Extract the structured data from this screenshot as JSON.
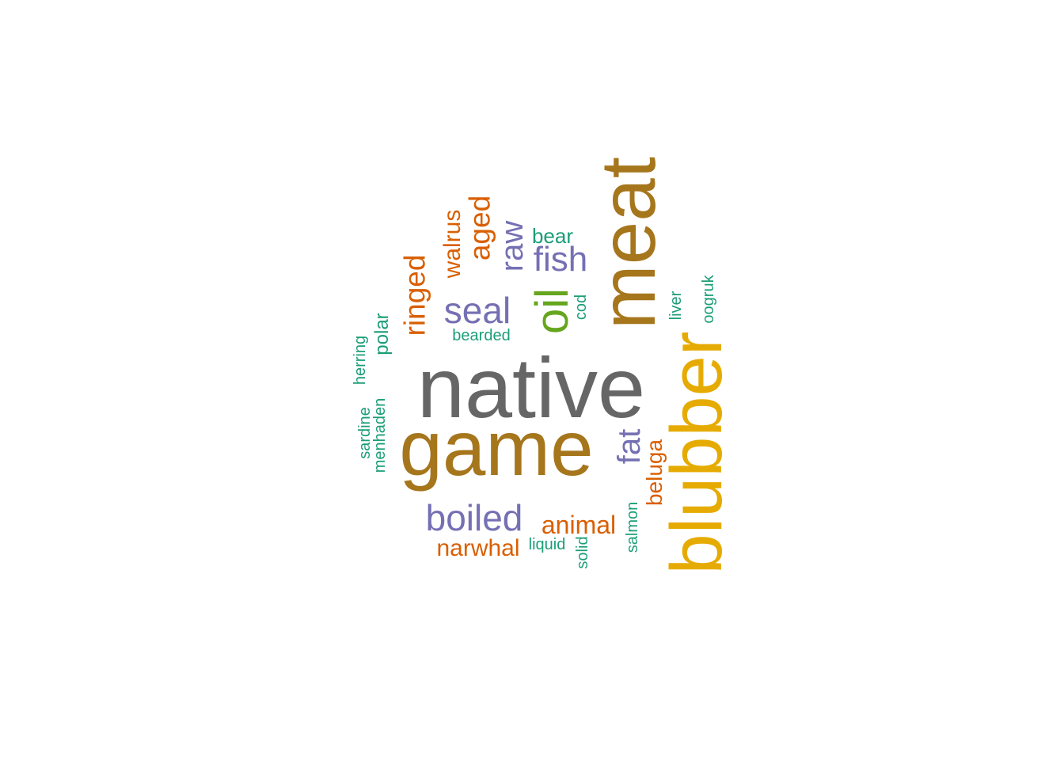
{
  "palette": {
    "gray": "#666666",
    "brown": "#A6761D",
    "gold": "#E6AB02",
    "purple": "#7570B3",
    "orange": "#D95F02",
    "green": "#66A61E",
    "teal": "#1B9E77"
  },
  "words": [
    {
      "text": "native",
      "weight": 10,
      "color": "#666666",
      "orientation": "horizontal"
    },
    {
      "text": "game",
      "weight": 9,
      "color": "#A6761D",
      "orientation": "horizontal"
    },
    {
      "text": "meat",
      "weight": 9,
      "color": "#A6761D",
      "orientation": "vertical"
    },
    {
      "text": "blubber",
      "weight": 8,
      "color": "#E6AB02",
      "orientation": "vertical"
    },
    {
      "text": "oil",
      "weight": 6,
      "color": "#66A61E",
      "orientation": "vertical"
    },
    {
      "text": "seal",
      "weight": 5,
      "color": "#7570B3",
      "orientation": "horizontal"
    },
    {
      "text": "boiled",
      "weight": 5,
      "color": "#7570B3",
      "orientation": "horizontal"
    },
    {
      "text": "fish",
      "weight": 5,
      "color": "#7570B3",
      "orientation": "horizontal"
    },
    {
      "text": "raw",
      "weight": 5,
      "color": "#7570B3",
      "orientation": "vertical"
    },
    {
      "text": "fat",
      "weight": 5,
      "color": "#7570B3",
      "orientation": "vertical"
    },
    {
      "text": "ringed",
      "weight": 4,
      "color": "#D95F02",
      "orientation": "vertical"
    },
    {
      "text": "aged",
      "weight": 4,
      "color": "#D95F02",
      "orientation": "vertical"
    },
    {
      "text": "walrus",
      "weight": 4,
      "color": "#D95F02",
      "orientation": "vertical"
    },
    {
      "text": "animal",
      "weight": 4,
      "color": "#D95F02",
      "orientation": "horizontal"
    },
    {
      "text": "narwhal",
      "weight": 4,
      "color": "#D95F02",
      "orientation": "horizontal"
    },
    {
      "text": "beluga",
      "weight": 4,
      "color": "#D95F02",
      "orientation": "vertical"
    },
    {
      "text": "bear",
      "weight": 3,
      "color": "#1B9E77",
      "orientation": "horizontal"
    },
    {
      "text": "polar",
      "weight": 3,
      "color": "#1B9E77",
      "orientation": "vertical"
    },
    {
      "text": "bearded",
      "weight": 2,
      "color": "#1B9E77",
      "orientation": "horizontal"
    },
    {
      "text": "herring",
      "weight": 2,
      "color": "#1B9E77",
      "orientation": "vertical"
    },
    {
      "text": "sardine",
      "weight": 2,
      "color": "#1B9E77",
      "orientation": "vertical"
    },
    {
      "text": "menhaden",
      "weight": 2,
      "color": "#1B9E77",
      "orientation": "vertical"
    },
    {
      "text": "cod",
      "weight": 2,
      "color": "#1B9E77",
      "orientation": "vertical"
    },
    {
      "text": "liver",
      "weight": 2,
      "color": "#1B9E77",
      "orientation": "vertical"
    },
    {
      "text": "oogruk",
      "weight": 2,
      "color": "#1B9E77",
      "orientation": "vertical"
    },
    {
      "text": "liquid",
      "weight": 2,
      "color": "#1B9E77",
      "orientation": "horizontal"
    },
    {
      "text": "solid",
      "weight": 2,
      "color": "#1B9E77",
      "orientation": "vertical"
    },
    {
      "text": "salmon",
      "weight": 2,
      "color": "#1B9E77",
      "orientation": "vertical"
    }
  ]
}
